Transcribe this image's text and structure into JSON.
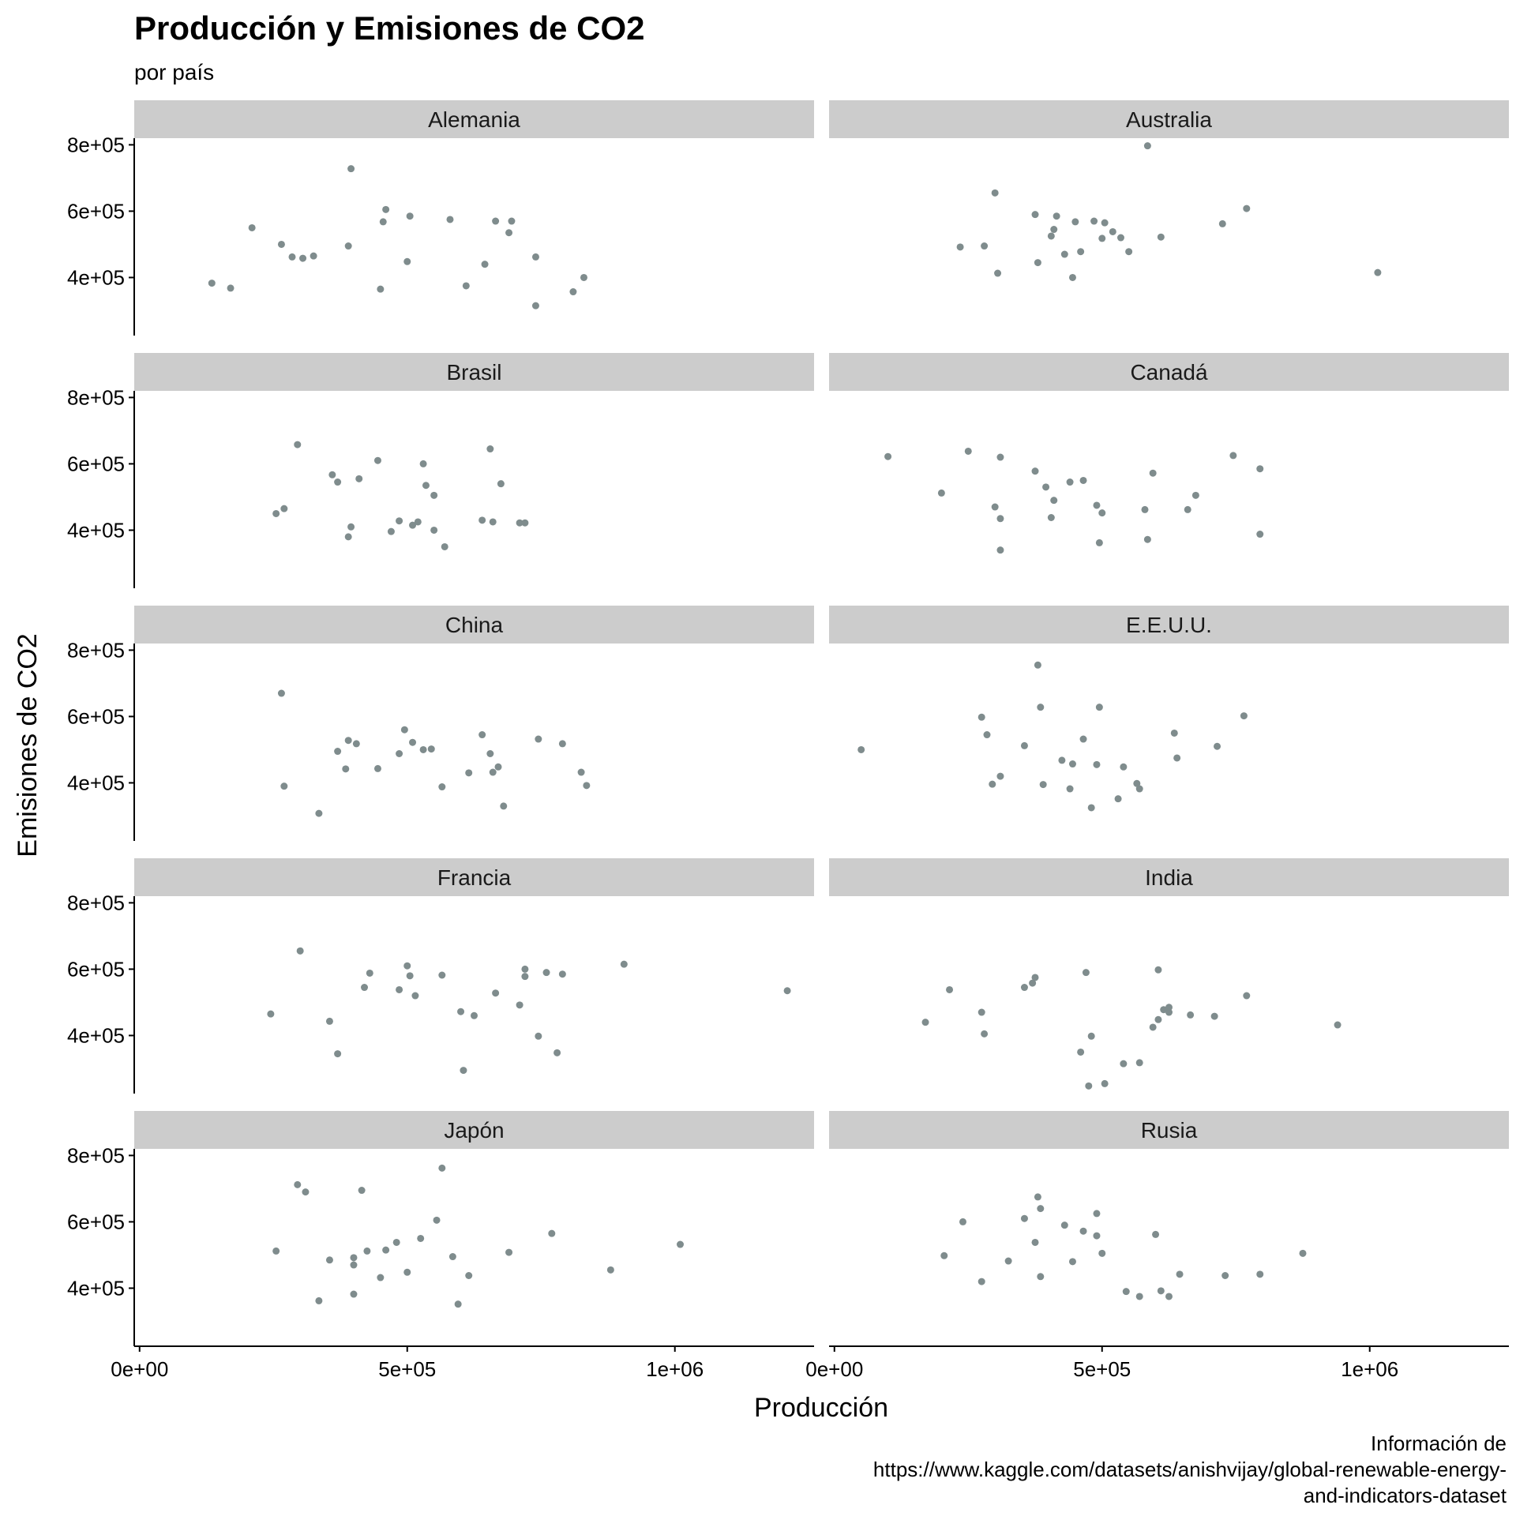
{
  "chart_data": {
    "type": "scatter",
    "title": "Producción y Emisiones de CO2",
    "subtitle": "por país",
    "xlabel": "Producción",
    "ylabel": "Emisiones de CO2",
    "caption": "Información de\nhttps://www.kaggle.com/datasets/anishvijay/global-renewable-energy-\nand-indicators-dataset",
    "xlim": [
      -10000,
      1260000
    ],
    "ylim": [
      225000,
      820000
    ],
    "x_ticks": [
      0,
      500000,
      1000000
    ],
    "x_tick_labels": [
      "0e+00",
      "5e+05",
      "1e+06"
    ],
    "y_ticks": [
      400000,
      600000,
      800000
    ],
    "y_tick_labels": [
      "4e+05",
      "6e+05",
      "8e+05"
    ],
    "point_color": "#7f8c8d",
    "strip_color": "#cccccc",
    "facet_columns": 2,
    "facets": [
      {
        "name": "Alemania",
        "points": [
          [
            135000,
            383000
          ],
          [
            170000,
            368000
          ],
          [
            210000,
            550000
          ],
          [
            265000,
            500000
          ],
          [
            285000,
            462000
          ],
          [
            305000,
            458000
          ],
          [
            325000,
            465000
          ],
          [
            390000,
            495000
          ],
          [
            395000,
            728000
          ],
          [
            450000,
            365000
          ],
          [
            455000,
            568000
          ],
          [
            460000,
            605000
          ],
          [
            500000,
            448000
          ],
          [
            505000,
            585000
          ],
          [
            580000,
            575000
          ],
          [
            610000,
            375000
          ],
          [
            645000,
            440000
          ],
          [
            665000,
            570000
          ],
          [
            690000,
            535000
          ],
          [
            695000,
            570000
          ],
          [
            740000,
            315000
          ],
          [
            740000,
            462000
          ],
          [
            810000,
            357000
          ],
          [
            830000,
            400000
          ]
        ]
      },
      {
        "name": "Australia",
        "points": [
          [
            235000,
            492000
          ],
          [
            280000,
            495000
          ],
          [
            300000,
            655000
          ],
          [
            305000,
            413000
          ],
          [
            375000,
            590000
          ],
          [
            380000,
            445000
          ],
          [
            405000,
            525000
          ],
          [
            410000,
            545000
          ],
          [
            415000,
            585000
          ],
          [
            430000,
            470000
          ],
          [
            445000,
            400000
          ],
          [
            450000,
            568000
          ],
          [
            460000,
            478000
          ],
          [
            485000,
            570000
          ],
          [
            500000,
            518000
          ],
          [
            505000,
            565000
          ],
          [
            520000,
            538000
          ],
          [
            535000,
            520000
          ],
          [
            550000,
            478000
          ],
          [
            585000,
            797000
          ],
          [
            610000,
            522000
          ],
          [
            725000,
            562000
          ],
          [
            770000,
            608000
          ],
          [
            1015000,
            415000
          ]
        ]
      },
      {
        "name": "Brasil",
        "points": [
          [
            255000,
            450000
          ],
          [
            270000,
            465000
          ],
          [
            295000,
            658000
          ],
          [
            360000,
            567000
          ],
          [
            370000,
            545000
          ],
          [
            390000,
            380000
          ],
          [
            395000,
            410000
          ],
          [
            410000,
            555000
          ],
          [
            445000,
            610000
          ],
          [
            470000,
            396000
          ],
          [
            485000,
            428000
          ],
          [
            510000,
            415000
          ],
          [
            520000,
            425000
          ],
          [
            530000,
            600000
          ],
          [
            535000,
            535000
          ],
          [
            550000,
            400000
          ],
          [
            550000,
            505000
          ],
          [
            570000,
            350000
          ],
          [
            640000,
            430000
          ],
          [
            655000,
            645000
          ],
          [
            660000,
            425000
          ],
          [
            675000,
            540000
          ],
          [
            710000,
            422000
          ],
          [
            720000,
            422000
          ]
        ]
      },
      {
        "name": "Canadá",
        "points": [
          [
            100000,
            622000
          ],
          [
            200000,
            512000
          ],
          [
            250000,
            638000
          ],
          [
            300000,
            470000
          ],
          [
            310000,
            620000
          ],
          [
            310000,
            435000
          ],
          [
            310000,
            340000
          ],
          [
            375000,
            578000
          ],
          [
            395000,
            530000
          ],
          [
            405000,
            438000
          ],
          [
            410000,
            490000
          ],
          [
            440000,
            545000
          ],
          [
            465000,
            550000
          ],
          [
            490000,
            475000
          ],
          [
            495000,
            362000
          ],
          [
            500000,
            452000
          ],
          [
            580000,
            462000
          ],
          [
            585000,
            372000
          ],
          [
            595000,
            572000
          ],
          [
            660000,
            462000
          ],
          [
            675000,
            505000
          ],
          [
            745000,
            625000
          ],
          [
            795000,
            585000
          ],
          [
            795000,
            388000
          ]
        ]
      },
      {
        "name": "China",
        "points": [
          [
            265000,
            670000
          ],
          [
            270000,
            390000
          ],
          [
            335000,
            308000
          ],
          [
            370000,
            495000
          ],
          [
            385000,
            442000
          ],
          [
            390000,
            528000
          ],
          [
            405000,
            518000
          ],
          [
            445000,
            443000
          ],
          [
            485000,
            488000
          ],
          [
            495000,
            560000
          ],
          [
            510000,
            522000
          ],
          [
            530000,
            500000
          ],
          [
            545000,
            502000
          ],
          [
            565000,
            388000
          ],
          [
            615000,
            430000
          ],
          [
            640000,
            545000
          ],
          [
            655000,
            488000
          ],
          [
            660000,
            432000
          ],
          [
            670000,
            448000
          ],
          [
            680000,
            330000
          ],
          [
            745000,
            532000
          ],
          [
            790000,
            518000
          ],
          [
            825000,
            432000
          ],
          [
            835000,
            392000
          ]
        ]
      },
      {
        "name": "E.E.U.U.",
        "points": [
          [
            50000,
            500000
          ],
          [
            275000,
            598000
          ],
          [
            285000,
            545000
          ],
          [
            295000,
            396000
          ],
          [
            310000,
            420000
          ],
          [
            355000,
            512000
          ],
          [
            380000,
            755000
          ],
          [
            385000,
            628000
          ],
          [
            390000,
            395000
          ],
          [
            425000,
            468000
          ],
          [
            440000,
            382000
          ],
          [
            445000,
            457000
          ],
          [
            465000,
            532000
          ],
          [
            480000,
            325000
          ],
          [
            490000,
            455000
          ],
          [
            495000,
            628000
          ],
          [
            530000,
            352000
          ],
          [
            540000,
            448000
          ],
          [
            565000,
            398000
          ],
          [
            570000,
            382000
          ],
          [
            635000,
            550000
          ],
          [
            640000,
            475000
          ],
          [
            715000,
            510000
          ],
          [
            765000,
            602000
          ]
        ]
      },
      {
        "name": "Francia",
        "points": [
          [
            245000,
            465000
          ],
          [
            300000,
            655000
          ],
          [
            355000,
            443000
          ],
          [
            370000,
            345000
          ],
          [
            420000,
            545000
          ],
          [
            430000,
            588000
          ],
          [
            485000,
            538000
          ],
          [
            500000,
            610000
          ],
          [
            505000,
            580000
          ],
          [
            515000,
            520000
          ],
          [
            565000,
            582000
          ],
          [
            600000,
            472000
          ],
          [
            605000,
            295000
          ],
          [
            625000,
            460000
          ],
          [
            665000,
            528000
          ],
          [
            710000,
            492000
          ],
          [
            720000,
            578000
          ],
          [
            720000,
            600000
          ],
          [
            745000,
            398000
          ],
          [
            760000,
            590000
          ],
          [
            780000,
            348000
          ],
          [
            790000,
            585000
          ],
          [
            905000,
            615000
          ],
          [
            1210000,
            535000
          ]
        ]
      },
      {
        "name": "India",
        "points": [
          [
            170000,
            440000
          ],
          [
            215000,
            538000
          ],
          [
            275000,
            470000
          ],
          [
            280000,
            405000
          ],
          [
            355000,
            545000
          ],
          [
            370000,
            558000
          ],
          [
            375000,
            575000
          ],
          [
            460000,
            350000
          ],
          [
            470000,
            590000
          ],
          [
            475000,
            248000
          ],
          [
            480000,
            398000
          ],
          [
            505000,
            255000
          ],
          [
            540000,
            315000
          ],
          [
            570000,
            318000
          ],
          [
            595000,
            425000
          ],
          [
            605000,
            598000
          ],
          [
            605000,
            448000
          ],
          [
            615000,
            478000
          ],
          [
            625000,
            470000
          ],
          [
            625000,
            485000
          ],
          [
            665000,
            462000
          ],
          [
            710000,
            458000
          ],
          [
            770000,
            520000
          ],
          [
            940000,
            432000
          ]
        ]
      },
      {
        "name": "Japón",
        "points": [
          [
            255000,
            512000
          ],
          [
            295000,
            712000
          ],
          [
            310000,
            690000
          ],
          [
            335000,
            362000
          ],
          [
            355000,
            485000
          ],
          [
            400000,
            382000
          ],
          [
            400000,
            492000
          ],
          [
            400000,
            470000
          ],
          [
            415000,
            695000
          ],
          [
            425000,
            512000
          ],
          [
            450000,
            432000
          ],
          [
            460000,
            515000
          ],
          [
            480000,
            538000
          ],
          [
            500000,
            448000
          ],
          [
            525000,
            550000
          ],
          [
            555000,
            605000
          ],
          [
            565000,
            762000
          ],
          [
            585000,
            495000
          ],
          [
            595000,
            352000
          ],
          [
            615000,
            438000
          ],
          [
            690000,
            508000
          ],
          [
            770000,
            565000
          ],
          [
            880000,
            455000
          ],
          [
            1010000,
            532000
          ]
        ]
      },
      {
        "name": "Rusia",
        "points": [
          [
            205000,
            498000
          ],
          [
            240000,
            600000
          ],
          [
            275000,
            420000
          ],
          [
            325000,
            482000
          ],
          [
            355000,
            610000
          ],
          [
            375000,
            538000
          ],
          [
            380000,
            675000
          ],
          [
            385000,
            640000
          ],
          [
            385000,
            435000
          ],
          [
            430000,
            590000
          ],
          [
            445000,
            480000
          ],
          [
            465000,
            572000
          ],
          [
            490000,
            625000
          ],
          [
            490000,
            558000
          ],
          [
            500000,
            505000
          ],
          [
            545000,
            390000
          ],
          [
            570000,
            375000
          ],
          [
            600000,
            562000
          ],
          [
            610000,
            392000
          ],
          [
            625000,
            375000
          ],
          [
            645000,
            442000
          ],
          [
            730000,
            438000
          ],
          [
            795000,
            442000
          ],
          [
            875000,
            505000
          ]
        ]
      }
    ]
  }
}
